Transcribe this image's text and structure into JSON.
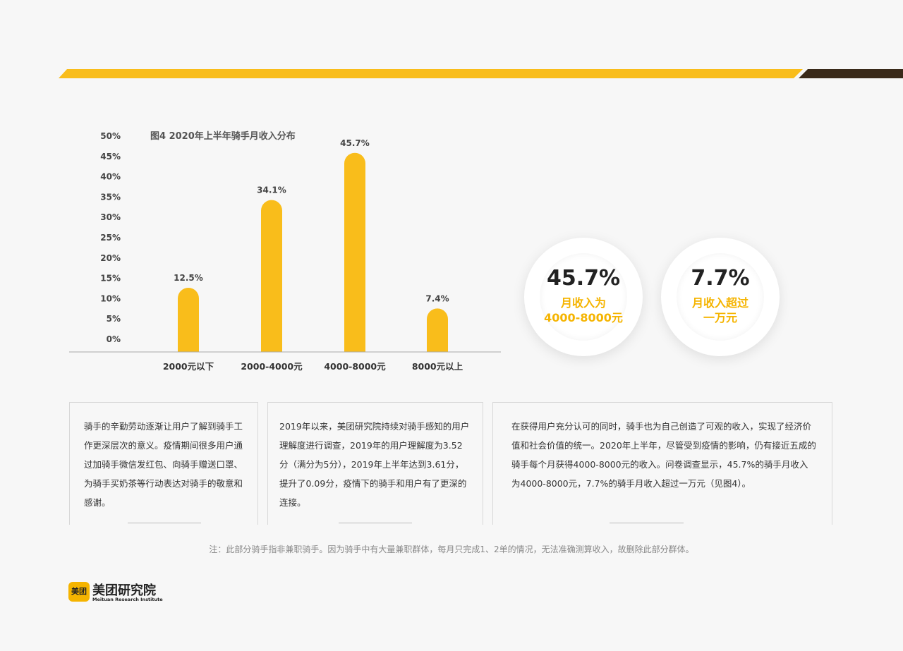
{
  "chart_data": {
    "type": "bar",
    "title": "图4  2020年上半年骑手月收入分布",
    "categories": [
      "2000元以下",
      "2000-4000元",
      "4000-8000元",
      "8000元以上"
    ],
    "values": [
      12.5,
      34.1,
      45.7,
      7.4
    ],
    "value_labels": [
      "12.5%",
      "34.1%",
      "45.7%",
      "7.4%"
    ],
    "yticks": [
      "0%",
      "5%",
      "10%",
      "15%",
      "20%",
      "25%",
      "30%",
      "35%",
      "40%",
      "45%",
      "50%"
    ],
    "ylim": [
      0,
      50
    ],
    "grid": false,
    "bar_color": "#f9bd1b"
  },
  "highlights": [
    {
      "value": "45.7%",
      "label_line1": "月收入为",
      "label_line2": "4000-8000元"
    },
    {
      "value": "7.7%",
      "label_line1": "月收入超过",
      "label_line2": "一万元"
    }
  ],
  "paragraphs": {
    "p1": "骑手的辛勤劳动逐渐让用户了解到骑手工作更深层次的意义。疫情期间很多用户通过加骑手微信发红包、向骑手赠送口罩、为骑手买奶茶等行动表达对骑手的敬意和感谢。",
    "p2": "2019年以来，美团研究院持续对骑手感知的用户理解度进行调查，2019年的用户理解度为3.52分（满分为5分），2019年上半年达到3.61分，提升了0.09分，疫情下的骑手和用户有了更深的连接。",
    "p3": "在获得用户充分认可的同时，骑手也为自己创造了可观的收入，实现了经济价值和社会价值的统一。2020年上半年，尽管受到疫情的影响，仍有接近五成的骑手每个月获得4000-8000元的收入。问卷调查显示，45.7%的骑手月收入为4000-8000元，7.7%的骑手月收入超过一万元（见图4）。"
  },
  "note": "注：此部分骑手指非兼职骑手。因为骑手中有大量兼职群体，每月只完成1、2单的情况，无法准确测算收入，故删除此部分群体。",
  "logo": {
    "mark": "美团",
    "name_cn": "美团研究院",
    "name_en": "Meituan Research Institute"
  },
  "colors": {
    "accent": "#f9bd1b",
    "dark_band": "#3a2a1a"
  }
}
